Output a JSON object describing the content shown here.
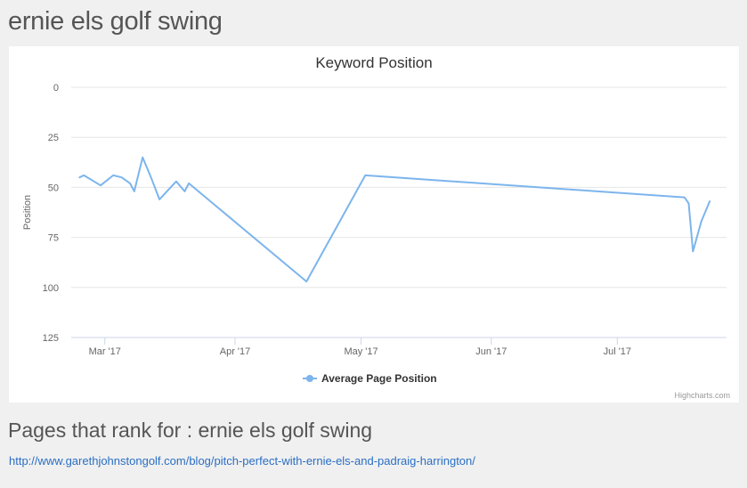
{
  "page": {
    "title": "ernie els golf swing",
    "pages_heading": "Pages that rank for : ernie els golf swing",
    "links": [
      {
        "url": "http://www.garethjohnstongolf.com/blog/pitch-perfect-with-ernie-els-and-padraig-harrington/"
      }
    ]
  },
  "chart_data": {
    "type": "line",
    "title": "Keyword Position",
    "xlabel": "",
    "ylabel": "Position",
    "credits": "Highcharts.com",
    "y_reversed": true,
    "ylim": [
      0,
      125
    ],
    "y_ticks": [
      0,
      25,
      50,
      75,
      100,
      125
    ],
    "xlim": [
      "2017-02-21",
      "2017-07-27"
    ],
    "x_ticks": [
      {
        "date": "2017-03-01",
        "label": "Mar '17"
      },
      {
        "date": "2017-04-01",
        "label": "Apr '17"
      },
      {
        "date": "2017-05-01",
        "label": "May '17"
      },
      {
        "date": "2017-06-01",
        "label": "Jun '17"
      },
      {
        "date": "2017-07-01",
        "label": "Jul '17"
      }
    ],
    "grid": true,
    "legend_position": "bottom-center",
    "series": [
      {
        "name": "Average Page Position",
        "color": "#7cb5ec",
        "points": [
          {
            "x": "2017-02-23",
            "y": 45
          },
          {
            "x": "2017-02-24",
            "y": 44
          },
          {
            "x": "2017-02-28",
            "y": 49
          },
          {
            "x": "2017-03-03",
            "y": 44
          },
          {
            "x": "2017-03-05",
            "y": 45
          },
          {
            "x": "2017-03-07",
            "y": 48
          },
          {
            "x": "2017-03-08",
            "y": 52
          },
          {
            "x": "2017-03-10",
            "y": 35
          },
          {
            "x": "2017-03-12",
            "y": 45
          },
          {
            "x": "2017-03-14",
            "y": 56
          },
          {
            "x": "2017-03-18",
            "y": 47
          },
          {
            "x": "2017-03-20",
            "y": 52
          },
          {
            "x": "2017-03-21",
            "y": 48
          },
          {
            "x": "2017-04-18",
            "y": 97
          },
          {
            "x": "2017-05-02",
            "y": 44
          },
          {
            "x": "2017-07-17",
            "y": 55
          },
          {
            "x": "2017-07-18",
            "y": 58
          },
          {
            "x": "2017-07-19",
            "y": 82
          },
          {
            "x": "2017-07-21",
            "y": 67
          },
          {
            "x": "2017-07-23",
            "y": 57
          }
        ]
      }
    ]
  }
}
